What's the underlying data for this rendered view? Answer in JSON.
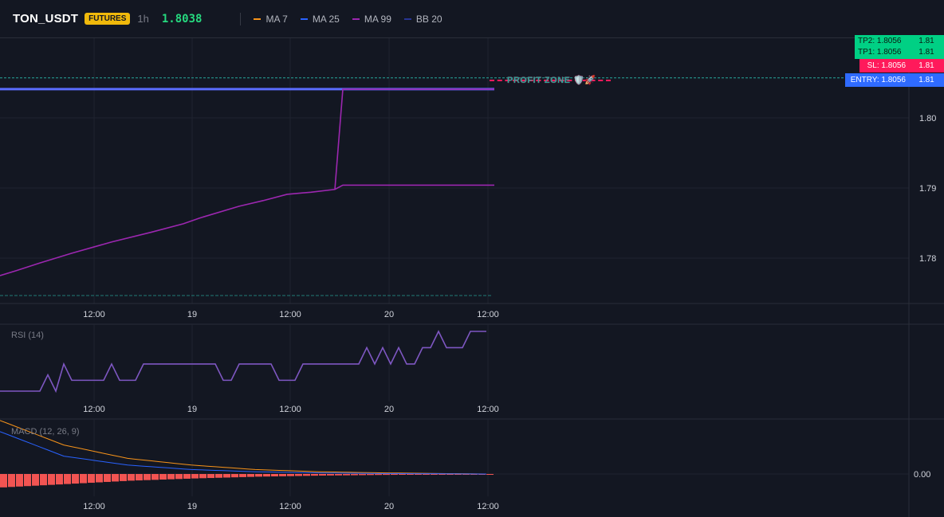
{
  "header": {
    "symbol": "TON_USDT",
    "badge": "FUTURES",
    "timeframe": "1h",
    "price": "1.8038",
    "legend": [
      {
        "label": "MA 7",
        "color": "#f7931a"
      },
      {
        "label": "MA 25",
        "color": "#2962ff"
      },
      {
        "label": "MA 99",
        "color": "#9c27b0"
      },
      {
        "label": "BB 20",
        "color": "#283593"
      }
    ]
  },
  "tags": {
    "tp2": "TP2: 1.8056",
    "tp2_price": "1.81",
    "tp1": "TP1: 1.8056",
    "tp1_price": "1.81",
    "sl": "SL: 1.8056",
    "sl_price": "1.81",
    "entry": "ENTRY: 1.8056",
    "entry_price": "1.81",
    "profit_zone": "PROFIT ZONE 🛡️🚀"
  },
  "panes": {
    "rsi_label": "RSI (14)",
    "macd_label": "MACD (12, 26, 9)"
  },
  "colors": {
    "tp": "#00d084",
    "sl": "#ff1a5b",
    "entry": "#2f6bff",
    "ma99": "#9c27b0",
    "ma25": "#5b6cff",
    "rsi": "#7e57c2",
    "macd_fast": "#f7931a",
    "macd_slow": "#2962ff",
    "hist": "#f25452"
  },
  "chart_data": [
    {
      "type": "line",
      "name": "price",
      "x_ticks": [
        "12:00",
        "19",
        "12:00",
        "20",
        "12:00"
      ],
      "y_ticks": [
        1.78,
        1.79,
        1.8,
        1.81
      ],
      "ylim": [
        1.7717,
        1.8137
      ],
      "series": [
        {
          "name": "MA 99",
          "x": [
            0,
            2,
            5,
            9,
            14,
            19,
            23,
            25,
            30,
            33,
            36,
            39,
            42,
            43,
            62
          ],
          "values": [
            1.7775,
            1.7782,
            1.7793,
            1.7807,
            1.7823,
            1.7837,
            1.7849,
            1.7857,
            1.7874,
            1.7882,
            1.7891,
            1.7894,
            1.7898,
            1.7904,
            1.7904
          ]
        },
        {
          "name": "MA 25",
          "x": [
            0,
            62
          ],
          "values": [
            1.8041,
            1.8041
          ]
        }
      ],
      "levels": [
        {
          "name": "ENTRY",
          "value": 1.8056
        },
        {
          "name": "lower",
          "value": 1.7775
        }
      ]
    },
    {
      "type": "line",
      "name": "RSI (14)",
      "x_ticks": [
        "12:00",
        "19",
        "12:00",
        "20",
        "12:00"
      ],
      "ylim": [
        0,
        100
      ],
      "series": [
        {
          "name": "RSI (14)",
          "x": [
            0,
            5,
            6,
            7,
            8,
            9,
            10,
            13,
            14,
            15,
            17,
            18,
            27,
            28,
            29,
            30,
            34,
            35,
            37,
            38,
            45,
            46,
            47,
            48,
            49,
            50,
            51,
            52,
            53,
            54,
            55,
            56,
            57,
            58,
            59,
            60,
            61
          ],
          "values": [
            22,
            22,
            40,
            22,
            52,
            34,
            34,
            34,
            52,
            34,
            34,
            52,
            52,
            34,
            34,
            52,
            52,
            34,
            34,
            52,
            52,
            70,
            52,
            70,
            52,
            70,
            52,
            52,
            70,
            70,
            88,
            70,
            70,
            70,
            88,
            88,
            88
          ]
        }
      ]
    },
    {
      "type": "line",
      "name": "MACD (12, 26, 9)",
      "x_ticks": [
        "12:00",
        "19",
        "12:00",
        "20",
        "12:00"
      ],
      "y_ticks": [
        0.0
      ],
      "ylim": [
        -0.0012,
        0.0028
      ],
      "series": [
        {
          "name": "MACD",
          "x": [
            0,
            8,
            16,
            24,
            32,
            40,
            48,
            56,
            61
          ],
          "values": [
            0.0024,
            0.0013,
            0.0007,
            0.0004,
            0.0002,
            0.0001,
            5e-05,
            2e-05,
            0.0
          ]
        },
        {
          "name": "Signal",
          "x": [
            0,
            8,
            16,
            24,
            32,
            40,
            48,
            56,
            61
          ],
          "values": [
            0.0019,
            0.0008,
            0.0004,
            0.0002,
            0.0001,
            5e-05,
            2e-05,
            1e-05,
            0.0
          ]
        },
        {
          "name": "Histogram",
          "x": [
            0,
            8,
            16,
            24,
            32,
            40,
            48,
            56,
            61
          ],
          "values": [
            -0.0006,
            -0.00045,
            -0.0003,
            -0.0002,
            -0.00012,
            -7e-05,
            -4e-05,
            -2e-05,
            -1e-05
          ]
        }
      ]
    }
  ]
}
